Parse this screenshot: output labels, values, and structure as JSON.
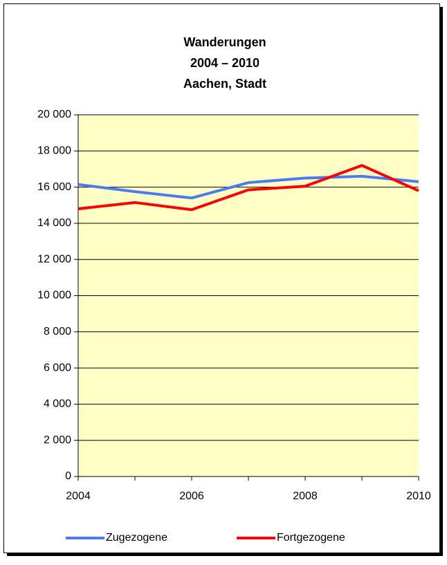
{
  "chart_data": {
    "type": "line",
    "title": [
      "Wanderungen",
      "2004 – 2010",
      "Aachen, Stadt"
    ],
    "x": [
      2004,
      2005,
      2006,
      2007,
      2008,
      2009,
      2010
    ],
    "xlim": [
      2004,
      2010
    ],
    "xticks": [
      2004,
      2006,
      2008,
      2010
    ],
    "ylim": [
      0,
      20000
    ],
    "yticks": [
      {
        "value": 0,
        "label": "0"
      },
      {
        "value": 2000,
        "label": "2 000"
      },
      {
        "value": 4000,
        "label": "4 000"
      },
      {
        "value": 6000,
        "label": "6 000"
      },
      {
        "value": 8000,
        "label": "8 000"
      },
      {
        "value": 10000,
        "label": "10 000"
      },
      {
        "value": 12000,
        "label": "12 000"
      },
      {
        "value": 14000,
        "label": "14 000"
      },
      {
        "value": 16000,
        "label": "16 000"
      },
      {
        "value": 18000,
        "label": "18 000"
      },
      {
        "value": 20000,
        "label": "20 000"
      }
    ],
    "grid": true,
    "legend": "bottom",
    "series": [
      {
        "name": "Zugezogene",
        "color": "#4a7cf0",
        "values": [
          16150,
          15750,
          15400,
          16250,
          16500,
          16600,
          16300
        ]
      },
      {
        "name": "Fortgezogene",
        "color": "#ff0000",
        "values": [
          14800,
          15150,
          14750,
          15850,
          16050,
          17200,
          15800
        ]
      }
    ]
  }
}
